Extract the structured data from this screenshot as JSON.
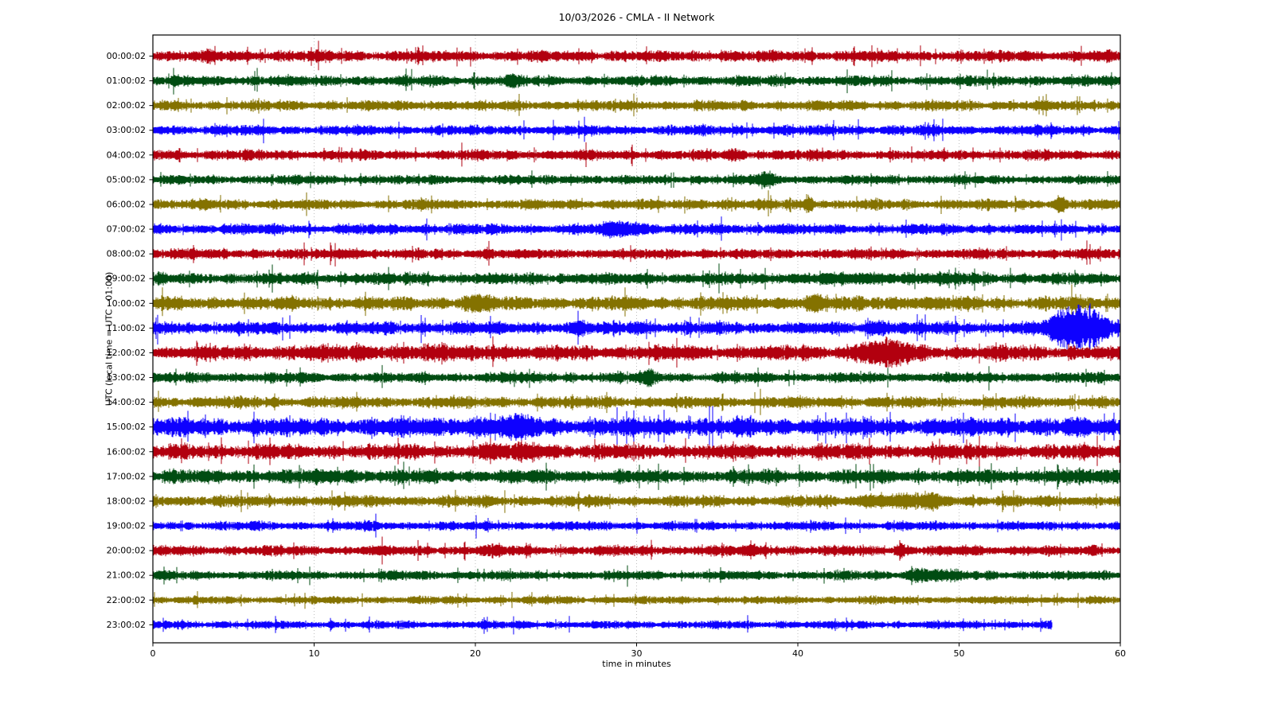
{
  "chart_data": {
    "type": "line",
    "subtype": "seismogram-dayplot",
    "title": "10/03/2026 - CMLA - II Network",
    "xlabel": "time in minutes",
    "ylabel": "UTC (local time = UTC - 01:00)",
    "xlim": [
      0,
      60
    ],
    "x_ticks": [
      0,
      10,
      20,
      30,
      40,
      50,
      60
    ],
    "grid": {
      "vertical_at": [
        10,
        20,
        30,
        40,
        50
      ],
      "color": "#b0b0b0",
      "style": "dotted"
    },
    "legend": "none",
    "palette": [
      "#B2000F",
      "#004C12",
      "#847200",
      "#0E01FF"
    ],
    "minutes_per_line": 60,
    "rows": [
      {
        "label": "00:00:02",
        "color": "#B2000F",
        "base_amp": 5.0,
        "end_min": 60,
        "events": [
          {
            "t": 3.5,
            "sigma": 0.2,
            "amp": 1.5
          }
        ]
      },
      {
        "label": "01:00:02",
        "color": "#004C12",
        "base_amp": 4.5,
        "end_min": 60,
        "events": [
          {
            "t": 22.3,
            "sigma": 0.4,
            "amp": 2.5
          }
        ]
      },
      {
        "label": "02:00:02",
        "color": "#847200",
        "base_amp": 4.5,
        "end_min": 60,
        "events": []
      },
      {
        "label": "03:00:02",
        "color": "#0E01FF",
        "base_amp": 4.5,
        "end_min": 60,
        "events": []
      },
      {
        "label": "04:00:02",
        "color": "#B2000F",
        "base_amp": 4.5,
        "end_min": 60,
        "events": [
          {
            "t": 36.0,
            "sigma": 0.3,
            "amp": 2.5
          }
        ]
      },
      {
        "label": "05:00:02",
        "color": "#004C12",
        "base_amp": 4.0,
        "end_min": 60,
        "events": [
          {
            "t": 9.0,
            "sigma": 0.3,
            "amp": 1.5
          },
          {
            "t": 26.0,
            "sigma": 0.3,
            "amp": 1.5
          },
          {
            "t": 38.0,
            "sigma": 0.45,
            "amp": 4.5
          }
        ]
      },
      {
        "label": "06:00:02",
        "color": "#847200",
        "base_amp": 4.5,
        "end_min": 60,
        "events": [
          {
            "t": 34.0,
            "sigma": 0.15,
            "amp": 3.0
          },
          {
            "t": 40.7,
            "sigma": 0.18,
            "amp": 8.0
          },
          {
            "t": 56.3,
            "sigma": 0.2,
            "amp": 7.0
          }
        ]
      },
      {
        "label": "07:00:02",
        "color": "#0E01FF",
        "base_amp": 4.5,
        "end_min": 60,
        "events": [
          {
            "t": 28.3,
            "sigma": 0.25,
            "amp": 4.0
          },
          {
            "t": 29.5,
            "sigma": 0.9,
            "amp": 5.0
          },
          {
            "t": 39.0,
            "sigma": 0.4,
            "amp": 2.0
          }
        ]
      },
      {
        "label": "08:00:02",
        "color": "#B2000F",
        "base_amp": 4.5,
        "end_min": 60,
        "events": [
          {
            "t": 12.3,
            "sigma": 0.5,
            "amp": 3.5
          },
          {
            "t": 20.8,
            "sigma": 0.3,
            "amp": 2.0
          }
        ]
      },
      {
        "label": "09:00:02",
        "color": "#004C12",
        "base_amp": 5.0,
        "end_min": 60,
        "events": [
          {
            "t": 9.5,
            "sigma": 0.25,
            "amp": 2.5
          },
          {
            "t": 27.0,
            "sigma": 0.3,
            "amp": 1.5
          },
          {
            "t": 46.0,
            "sigma": 4.0,
            "amp": 1.2
          }
        ]
      },
      {
        "label": "10:00:02",
        "color": "#847200",
        "base_amp": 6.0,
        "end_min": 60,
        "events": [
          {
            "t": 19.5,
            "sigma": 0.3,
            "amp": 3.0
          },
          {
            "t": 20.4,
            "sigma": 0.5,
            "amp": 4.0
          },
          {
            "t": 41.0,
            "sigma": 0.35,
            "amp": 4.5
          },
          {
            "t": 45.0,
            "sigma": 3.0,
            "amp": 1.0
          }
        ]
      },
      {
        "label": "11:00:02",
        "color": "#0E01FF",
        "base_amp": 5.5,
        "end_min": 60,
        "events": [
          {
            "t": 26.6,
            "sigma": 0.2,
            "amp": 5.0
          },
          {
            "t": 30.0,
            "sigma": 0.35,
            "amp": 4.0
          },
          {
            "t": 45.2,
            "sigma": 0.5,
            "amp": 4.5
          },
          {
            "t": 56.2,
            "sigma": 0.6,
            "amp": 9.0
          },
          {
            "t": 57.8,
            "sigma": 1.0,
            "amp": 20.0
          }
        ]
      },
      {
        "label": "12:00:02",
        "color": "#B2000F",
        "base_amp": 6.5,
        "end_min": 60,
        "events": [
          {
            "t": 15.0,
            "sigma": 5.0,
            "amp": 1.2
          },
          {
            "t": 21.0,
            "sigma": 0.4,
            "amp": 2.0
          },
          {
            "t": 44.3,
            "sigma": 0.4,
            "amp": 4.0
          },
          {
            "t": 45.6,
            "sigma": 1.1,
            "amp": 8.0
          }
        ]
      },
      {
        "label": "13:00:02",
        "color": "#004C12",
        "base_amp": 4.5,
        "end_min": 60,
        "events": [
          {
            "t": 30.8,
            "sigma": 0.4,
            "amp": 5.0
          }
        ]
      },
      {
        "label": "14:00:02",
        "color": "#847200",
        "base_amp": 5.0,
        "end_min": 60,
        "events": [
          {
            "t": 28.0,
            "sigma": 0.5,
            "amp": 2.0
          }
        ]
      },
      {
        "label": "15:00:02",
        "color": "#0E01FF",
        "base_amp": 8.0,
        "end_min": 60,
        "events": [
          {
            "t": 20.5,
            "sigma": 2.2,
            "amp": 2.5
          },
          {
            "t": 22.7,
            "sigma": 0.6,
            "amp": 3.0
          }
        ]
      },
      {
        "label": "16:00:02",
        "color": "#B2000F",
        "base_amp": 6.5,
        "end_min": 60,
        "events": [
          {
            "t": 21.0,
            "sigma": 0.4,
            "amp": 2.5
          },
          {
            "t": 23.0,
            "sigma": 1.5,
            "amp": 2.5
          }
        ]
      },
      {
        "label": "17:00:02",
        "color": "#004C12",
        "base_amp": 6.0,
        "end_min": 60,
        "events": [
          {
            "t": 12.0,
            "sigma": 0.5,
            "amp": 2.5
          },
          {
            "t": 57.0,
            "sigma": 1.5,
            "amp": 1.5
          }
        ]
      },
      {
        "label": "18:00:02",
        "color": "#847200",
        "base_amp": 5.0,
        "end_min": 60,
        "events": [
          {
            "t": 44.5,
            "sigma": 0.8,
            "amp": 2.5
          },
          {
            "t": 46.8,
            "sigma": 1.5,
            "amp": 3.0
          },
          {
            "t": 48.3,
            "sigma": 0.4,
            "amp": 3.0
          }
        ]
      },
      {
        "label": "19:00:02",
        "color": "#0E01FF",
        "base_amp": 4.0,
        "end_min": 60,
        "events": []
      },
      {
        "label": "20:00:02",
        "color": "#B2000F",
        "base_amp": 4.5,
        "end_min": 60,
        "events": [
          {
            "t": 21.0,
            "sigma": 0.5,
            "amp": 2.5
          },
          {
            "t": 37.0,
            "sigma": 0.4,
            "amp": 2.5
          },
          {
            "t": 46.4,
            "sigma": 0.22,
            "amp": 6.0
          }
        ]
      },
      {
        "label": "21:00:02",
        "color": "#004C12",
        "base_amp": 4.0,
        "end_min": 60,
        "events": [
          {
            "t": 47.5,
            "sigma": 0.5,
            "amp": 3.0
          },
          {
            "t": 48.5,
            "sigma": 0.8,
            "amp": 3.5
          }
        ]
      },
      {
        "label": "22:00:02",
        "color": "#847200",
        "base_amp": 3.5,
        "end_min": 60,
        "events": []
      },
      {
        "label": "23:00:02",
        "color": "#0E01FF",
        "base_amp": 3.5,
        "end_min": 55.8,
        "events": []
      }
    ]
  }
}
